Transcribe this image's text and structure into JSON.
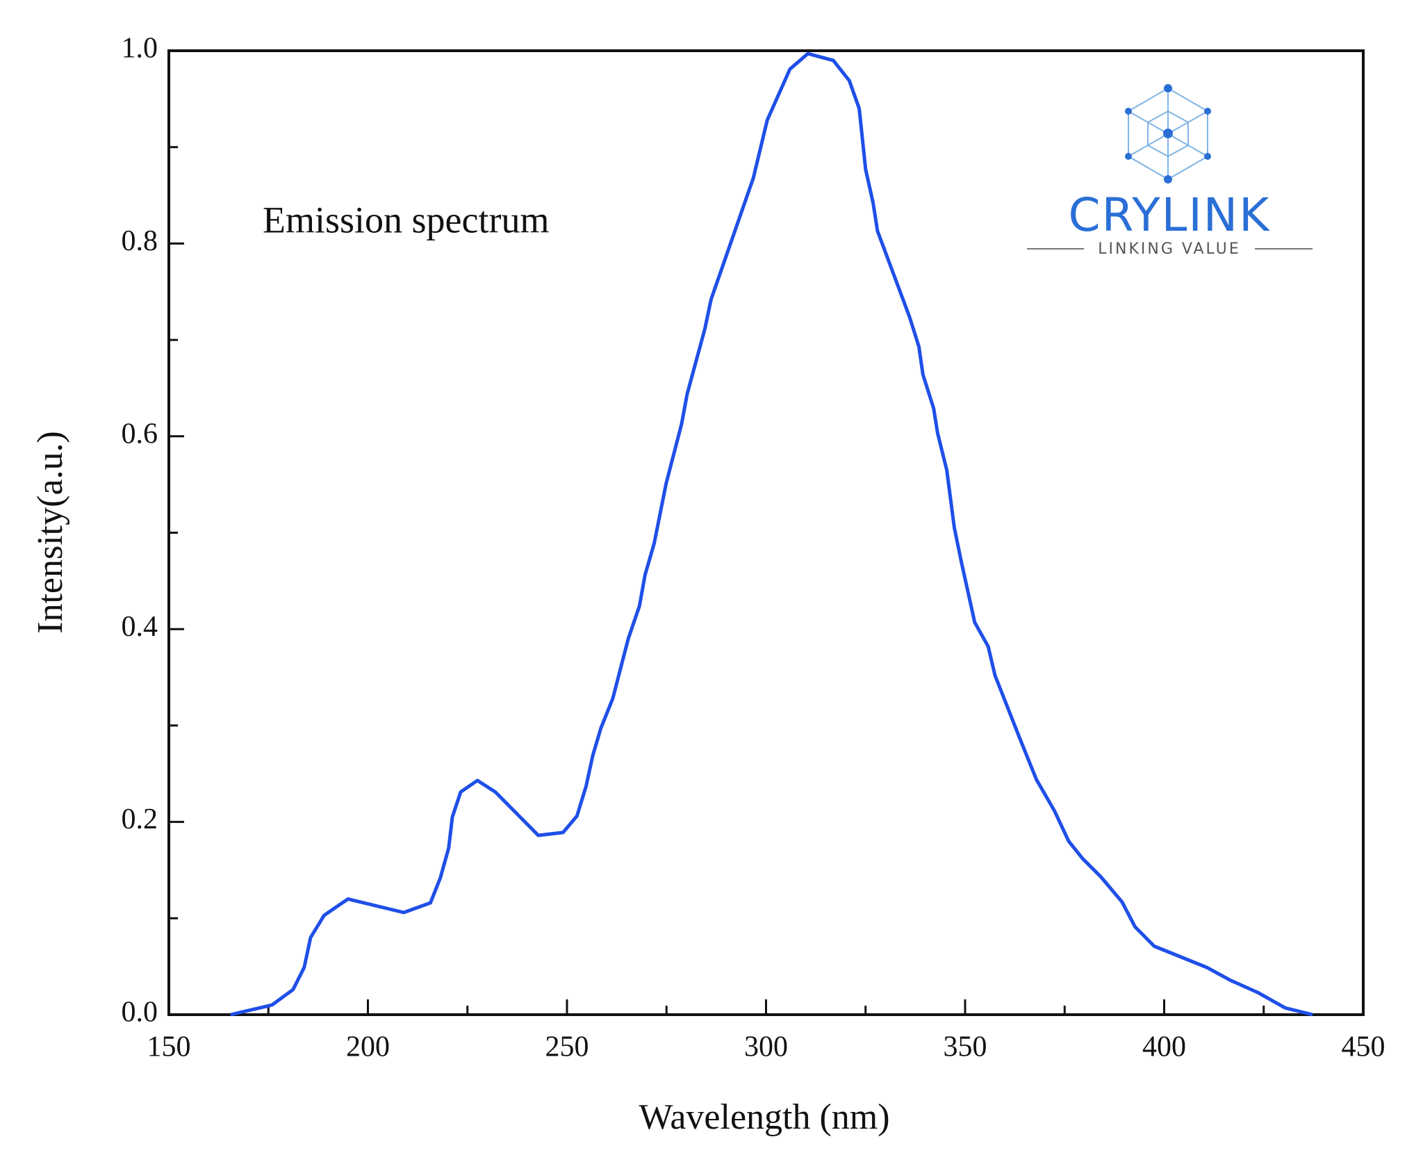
{
  "chart_data": {
    "type": "line",
    "annotation": "Emission spectrum",
    "x_label": "Wavelength (nm)",
    "y_label": "Intensity(a.u.)",
    "color": "#1f4fe8",
    "x": [
      165.5,
      175.9,
      181.2,
      184,
      185.6,
      189,
      195,
      209,
      215.7,
      218.2,
      220.3,
      221.2,
      223.3,
      227.5,
      232,
      238,
      242.8,
      249,
      252.5,
      254.8,
      256.5,
      258.5,
      261.5,
      265.4,
      268.2,
      269.6,
      271.9,
      274.9,
      278.8,
      280.2,
      284.6,
      286.2,
      296.8,
      300.3,
      306,
      310.5,
      316.9,
      320.9,
      323.4,
      325,
      326.9,
      328,
      333.6,
      336.1,
      338.4,
      339.4,
      342.1,
      343.1,
      345.4,
      347.3,
      349.1,
      352.4,
      355.8,
      357.5,
      363.9,
      367.9,
      372.5,
      376,
      379.5,
      384.1,
      389.4,
      392.7,
      397.5,
      410.7,
      416.5,
      423.5,
      430.4,
      437.3
    ],
    "values": [
      0,
      0.01,
      0.026,
      0.049,
      0.08,
      0.103,
      0.12,
      0.106,
      0.116,
      0.142,
      0.173,
      0.205,
      0.231,
      0.243,
      0.231,
      0.206,
      0.186,
      0.189,
      0.206,
      0.237,
      0.269,
      0.297,
      0.328,
      0.39,
      0.424,
      0.456,
      0.489,
      0.551,
      0.613,
      0.644,
      0.711,
      0.742,
      0.868,
      0.928,
      0.981,
      0.997,
      0.99,
      0.969,
      0.94,
      0.877,
      0.842,
      0.813,
      0.751,
      0.723,
      0.693,
      0.664,
      0.629,
      0.603,
      0.565,
      0.505,
      0.469,
      0.407,
      0.382,
      0.352,
      0.285,
      0.244,
      0.211,
      0.18,
      0.162,
      0.143,
      0.117,
      0.091,
      0.071,
      0.049,
      0.036,
      0.023,
      0.007,
      0
    ],
    "xlim": [
      150,
      450
    ],
    "xticks": [
      150,
      200,
      250,
      300,
      350,
      400,
      450
    ],
    "xminor_ticks": [
      175,
      225,
      275,
      325,
      375,
      425
    ],
    "ylim": [
      0,
      1
    ],
    "yticks": [
      {
        "value": 0,
        "label": "0.0"
      },
      0.2,
      0.4,
      0.6,
      0.8,
      {
        "value": 1,
        "label": "1.0"
      }
    ],
    "yminor_ticks": [
      0.1,
      0.3,
      0.5,
      0.7,
      0.9
    ]
  },
  "logo": {
    "name": "CRYLINK",
    "tagline": "LINKING VALUE"
  }
}
